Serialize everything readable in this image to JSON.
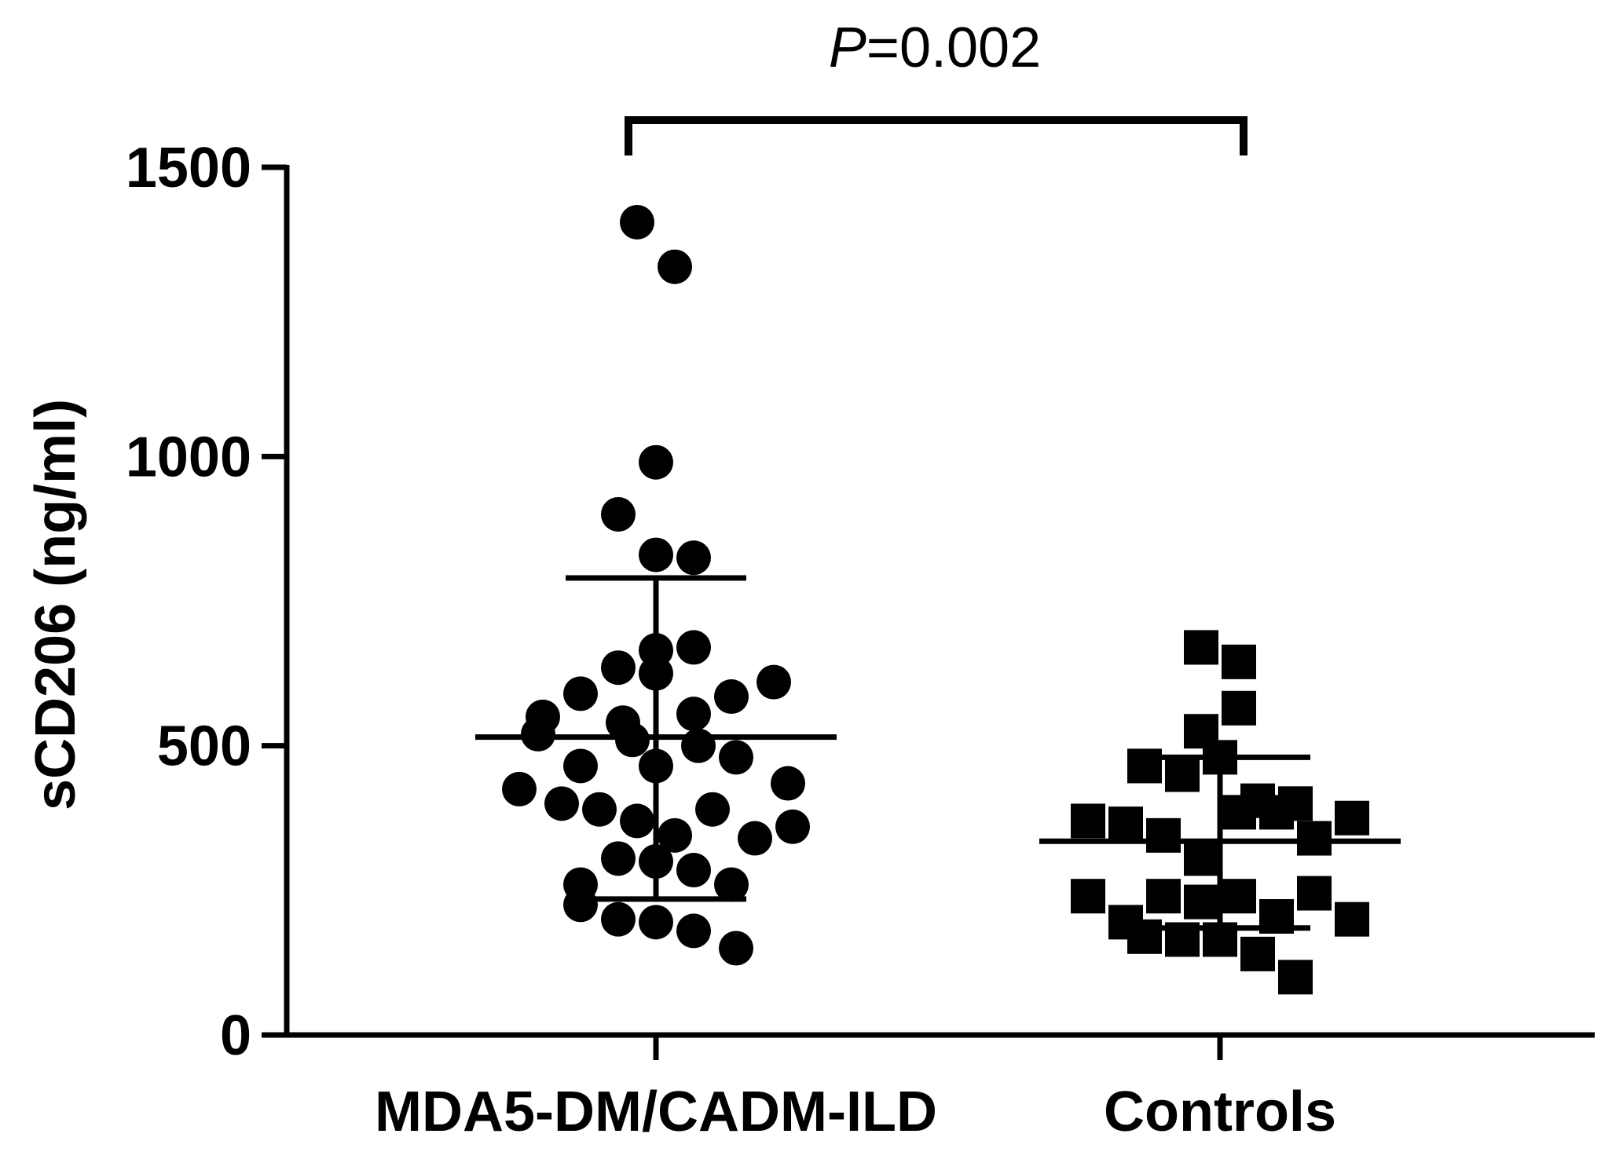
{
  "chart_data": {
    "type": "scatter",
    "ylabel": "sCD206 (ng/ml)",
    "xlabel": "",
    "ylim": [
      0,
      1500
    ],
    "yticks": [
      0,
      500,
      1000,
      1500
    ],
    "categories": [
      "MDA5-DM/CADM-ILD",
      "Controls"
    ],
    "series": [
      {
        "category": "MDA5-DM/CADM-ILD",
        "marker": "circle",
        "mean": 515,
        "sd_upper": 790,
        "sd_lower": 235,
        "points": [
          {
            "offset": -0.04,
            "y": 1405
          },
          {
            "offset": 0.04,
            "y": 1328
          },
          {
            "offset": 0.0,
            "y": 990
          },
          {
            "offset": -0.08,
            "y": 900
          },
          {
            "offset": 0.0,
            "y": 830
          },
          {
            "offset": 0.08,
            "y": 825
          },
          {
            "offset": 0.0,
            "y": 665
          },
          {
            "offset": 0.08,
            "y": 670
          },
          {
            "offset": -0.08,
            "y": 635
          },
          {
            "offset": 0.0,
            "y": 625
          },
          {
            "offset": -0.16,
            "y": 590
          },
          {
            "offset": 0.16,
            "y": 585
          },
          {
            "offset": 0.25,
            "y": 610
          },
          {
            "offset": -0.24,
            "y": 550
          },
          {
            "offset": -0.07,
            "y": 540
          },
          {
            "offset": 0.08,
            "y": 555
          },
          {
            "offset": -0.25,
            "y": 520
          },
          {
            "offset": -0.05,
            "y": 510
          },
          {
            "offset": 0.09,
            "y": 500
          },
          {
            "offset": -0.16,
            "y": 465
          },
          {
            "offset": 0.0,
            "y": 465
          },
          {
            "offset": 0.17,
            "y": 480
          },
          {
            "offset": -0.29,
            "y": 425
          },
          {
            "offset": 0.28,
            "y": 435
          },
          {
            "offset": -0.2,
            "y": 400
          },
          {
            "offset": -0.12,
            "y": 390
          },
          {
            "offset": -0.04,
            "y": 370
          },
          {
            "offset": 0.04,
            "y": 345
          },
          {
            "offset": 0.12,
            "y": 390
          },
          {
            "offset": 0.21,
            "y": 340
          },
          {
            "offset": 0.29,
            "y": 360
          },
          {
            "offset": -0.08,
            "y": 305
          },
          {
            "offset": 0.0,
            "y": 300
          },
          {
            "offset": 0.08,
            "y": 285
          },
          {
            "offset": -0.16,
            "y": 260
          },
          {
            "offset": 0.16,
            "y": 260
          },
          {
            "offset": -0.16,
            "y": 225
          },
          {
            "offset": -0.08,
            "y": 200
          },
          {
            "offset": 0.0,
            "y": 195
          },
          {
            "offset": 0.08,
            "y": 180
          },
          {
            "offset": 0.17,
            "y": 150
          }
        ]
      },
      {
        "category": "Controls",
        "marker": "square",
        "mean": 335,
        "sd_upper": 480,
        "sd_lower": 185,
        "points": [
          {
            "offset": -0.04,
            "y": 670
          },
          {
            "offset": 0.04,
            "y": 645
          },
          {
            "offset": 0.04,
            "y": 565
          },
          {
            "offset": -0.04,
            "y": 525
          },
          {
            "offset": -0.16,
            "y": 465
          },
          {
            "offset": -0.08,
            "y": 450
          },
          {
            "offset": 0.0,
            "y": 480
          },
          {
            "offset": 0.04,
            "y": 385
          },
          {
            "offset": 0.08,
            "y": 405
          },
          {
            "offset": 0.12,
            "y": 385
          },
          {
            "offset": 0.16,
            "y": 400
          },
          {
            "offset": -0.28,
            "y": 370
          },
          {
            "offset": -0.2,
            "y": 365
          },
          {
            "offset": -0.12,
            "y": 345
          },
          {
            "offset": 0.2,
            "y": 340
          },
          {
            "offset": 0.28,
            "y": 375
          },
          {
            "offset": -0.04,
            "y": 305
          },
          {
            "offset": -0.28,
            "y": 240
          },
          {
            "offset": -0.12,
            "y": 240
          },
          {
            "offset": -0.04,
            "y": 230
          },
          {
            "offset": 0.04,
            "y": 240
          },
          {
            "offset": 0.2,
            "y": 245
          },
          {
            "offset": -0.2,
            "y": 195
          },
          {
            "offset": 0.12,
            "y": 205
          },
          {
            "offset": 0.28,
            "y": 200
          },
          {
            "offset": -0.16,
            "y": 170
          },
          {
            "offset": -0.08,
            "y": 165
          },
          {
            "offset": 0.0,
            "y": 165
          },
          {
            "offset": 0.08,
            "y": 140
          },
          {
            "offset": 0.16,
            "y": 100
          }
        ]
      }
    ],
    "annotations": [
      {
        "type": "significance-bracket",
        "from": "MDA5-DM/CADM-ILD",
        "to": "Controls",
        "label_italic": "P",
        "label_rest": "=0.002"
      }
    ],
    "grid": false,
    "legend": "none"
  }
}
